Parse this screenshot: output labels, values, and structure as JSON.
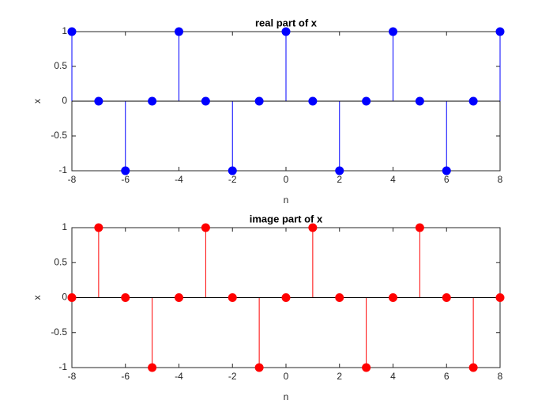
{
  "chart_data": [
    {
      "type": "stem",
      "title": "real part of x",
      "xlabel": "n",
      "ylabel": "x",
      "x": [
        -8,
        -7,
        -6,
        -5,
        -4,
        -3,
        -2,
        -1,
        0,
        1,
        2,
        3,
        4,
        5,
        6,
        7,
        8
      ],
      "values": [
        1,
        0,
        -1,
        0,
        1,
        0,
        -1,
        0,
        1,
        0,
        -1,
        0,
        1,
        0,
        -1,
        0,
        1
      ],
      "color": "#0000ff",
      "xlim": [
        -8,
        8
      ],
      "xticks": [
        -8,
        -6,
        -4,
        -2,
        0,
        2,
        4,
        6,
        8
      ],
      "ylim": [
        -1,
        1
      ],
      "yticks": [
        -1,
        -0.5,
        0,
        0.5,
        1
      ]
    },
    {
      "type": "stem",
      "title": "image part of x",
      "xlabel": "n",
      "ylabel": "x",
      "x": [
        -8,
        -7,
        -6,
        -5,
        -4,
        -3,
        -2,
        -1,
        0,
        1,
        2,
        3,
        4,
        5,
        6,
        7,
        8
      ],
      "values": [
        0,
        1,
        0,
        -1,
        0,
        1,
        0,
        -1,
        0,
        1,
        0,
        -1,
        0,
        1,
        0,
        -1,
        0
      ],
      "color": "#ff0000",
      "xlim": [
        -8,
        8
      ],
      "xticks": [
        -8,
        -6,
        -4,
        -2,
        0,
        2,
        4,
        6,
        8
      ],
      "ylim": [
        -1,
        1
      ],
      "yticks": [
        -1,
        -0.5,
        0,
        0.5,
        1
      ]
    }
  ]
}
